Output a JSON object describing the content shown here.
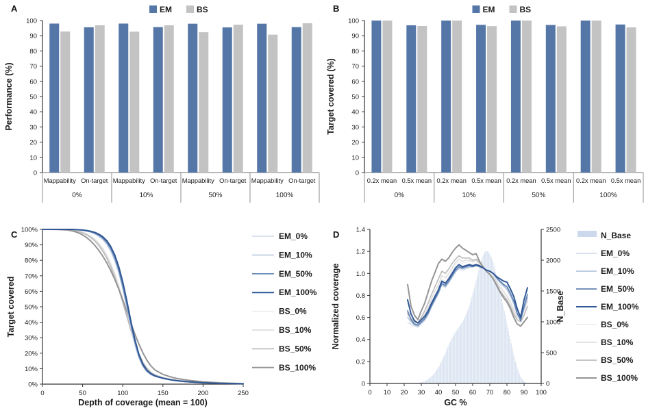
{
  "chart_data": [
    {
      "panel": "A",
      "type": "bar",
      "ylabel": "Performance (%)",
      "ylim": [
        0,
        100
      ],
      "ytick_step": 10,
      "legend": [
        "EM",
        "BS"
      ],
      "series_colors": {
        "EM": "#5577a7",
        "BS": "#c3c3c3"
      },
      "groups": [
        "0%",
        "10%",
        "50%",
        "100%"
      ],
      "subcategories": [
        "Mappability",
        "On-target"
      ],
      "series": [
        {
          "name": "EM",
          "values": [
            [
              98.0,
              95.6
            ],
            [
              98.0,
              95.7
            ],
            [
              97.9,
              95.5
            ],
            [
              97.9,
              95.7
            ]
          ]
        },
        {
          "name": "BS",
          "values": [
            [
              92.8,
              96.9
            ],
            [
              92.7,
              96.9
            ],
            [
              92.3,
              97.3
            ],
            [
              90.7,
              98.2
            ]
          ]
        }
      ]
    },
    {
      "panel": "B",
      "type": "bar",
      "ylabel": "Target covered (%)",
      "ylim": [
        0,
        100
      ],
      "ytick_step": 10,
      "legend": [
        "EM",
        "BS"
      ],
      "series_colors": {
        "EM": "#5577a7",
        "BS": "#c3c3c3"
      },
      "groups": [
        "0%",
        "10%",
        "50%",
        "100%"
      ],
      "subcategories": [
        "0.2x mean",
        "0.5x mean"
      ],
      "series": [
        {
          "name": "EM",
          "values": [
            [
              100,
              96.9
            ],
            [
              100,
              97.2
            ],
            [
              100,
              97.1
            ],
            [
              100,
              97.4
            ]
          ]
        },
        {
          "name": "BS",
          "values": [
            [
              100,
              96.4
            ],
            [
              100,
              96.3
            ],
            [
              100,
              96.2
            ],
            [
              100,
              95.5
            ]
          ]
        }
      ]
    },
    {
      "panel": "C",
      "type": "line",
      "xlabel": "Depth of coverage (mean = 100)",
      "ylabel": "Target covered",
      "xlim": [
        0,
        250
      ],
      "xtick_step": 50,
      "ylim": [
        0,
        100
      ],
      "ytick_step": 10,
      "ytick_suffix": "%",
      "x": [
        0,
        10,
        20,
        30,
        35,
        40,
        45,
        50,
        55,
        60,
        65,
        70,
        75,
        80,
        85,
        90,
        95,
        100,
        105,
        110,
        115,
        120,
        125,
        130,
        135,
        140,
        150,
        160,
        170,
        180,
        200,
        220,
        250
      ],
      "series": [
        {
          "name": "EM_0%",
          "color": "#cdd9e9",
          "width": 1.1,
          "y": [
            100,
            100,
            100,
            100,
            99.9,
            99.8,
            99.5,
            99.2,
            98.7,
            98,
            96.9,
            95.4,
            93.3,
            90.2,
            85.7,
            79.5,
            71.5,
            61,
            49,
            36.5,
            25.2,
            16.8,
            11.2,
            7.9,
            6,
            4.9,
            3.5,
            2.6,
            1.9,
            1.4,
            0.8,
            0.4,
            0.2
          ]
        },
        {
          "name": "EM_10%",
          "color": "#a8bdd9",
          "width": 1.3,
          "y": [
            100,
            100,
            100,
            100,
            99.9,
            99.8,
            99.6,
            99.3,
            98.9,
            98.2,
            97.2,
            95.8,
            93.8,
            90.8,
            86.5,
            80.5,
            72.5,
            62,
            50,
            37.5,
            26,
            17.3,
            11.5,
            8.1,
            6.2,
            5,
            3.6,
            2.6,
            1.9,
            1.4,
            0.8,
            0.5,
            0.2
          ]
        },
        {
          "name": "EM_50%",
          "color": "#6282b2",
          "width": 1.7,
          "y": [
            100,
            100,
            100,
            100,
            100,
            99.9,
            99.7,
            99.5,
            99.1,
            98.5,
            97.7,
            96.4,
            94.5,
            91.8,
            87.8,
            82,
            74,
            64,
            52,
            39.5,
            27.8,
            18.5,
            12.3,
            8.6,
            6.5,
            5.2,
            3.7,
            2.7,
            2,
            1.5,
            0.9,
            0.5,
            0.2
          ]
        },
        {
          "name": "EM_100%",
          "color": "#2f5795",
          "width": 2,
          "y": [
            100,
            100,
            100,
            100,
            100,
            99.9,
            99.8,
            99.6,
            99.3,
            98.8,
            98.1,
            97,
            95.3,
            92.8,
            89,
            83.5,
            76,
            66,
            54,
            41,
            29,
            19.5,
            13,
            9,
            6.8,
            5.4,
            3.8,
            2.8,
            2.1,
            1.6,
            0.9,
            0.5,
            0.2
          ]
        },
        {
          "name": "BS_0%",
          "color": "#ebebeb",
          "width": 1.1,
          "y": [
            100,
            100,
            100,
            99.9,
            99.8,
            99.5,
            99,
            98.3,
            97.3,
            95.9,
            94,
            91.5,
            88.2,
            84,
            78.7,
            72.2,
            64.5,
            55.8,
            46.5,
            37,
            28,
            20.5,
            14.7,
            10.7,
            8,
            6.3,
            4.4,
            3.2,
            2.4,
            1.8,
            1,
            0.6,
            0.2
          ]
        },
        {
          "name": "BS_10%",
          "color": "#d9d9d9",
          "width": 1.3,
          "y": [
            100,
            100,
            100,
            99.9,
            99.7,
            99.4,
            98.9,
            98.1,
            97,
            95.5,
            93.5,
            90.8,
            87.3,
            82.9,
            77.4,
            70.8,
            63,
            54.3,
            45.2,
            36,
            27.2,
            19.8,
            14.2,
            10.4,
            7.8,
            6.1,
            4.3,
            3.1,
            2.3,
            1.7,
            1,
            0.6,
            0.2
          ]
        },
        {
          "name": "BS_50%",
          "color": "#bdbdbd",
          "width": 1.7,
          "y": [
            100,
            100,
            99.9,
            99.8,
            99.6,
            99.2,
            98.6,
            97.7,
            96.5,
            94.8,
            92.6,
            89.7,
            86,
            81.4,
            75.8,
            69,
            61.3,
            52.7,
            43.8,
            35,
            26.5,
            19.3,
            13.9,
            10.2,
            7.6,
            6,
            4.2,
            3.1,
            2.3,
            1.7,
            1,
            0.6,
            0.2
          ]
        },
        {
          "name": "BS_100%",
          "color": "#949494",
          "width": 2,
          "y": [
            100,
            100,
            99.9,
            99.6,
            99.2,
            98.6,
            97.7,
            96.4,
            94.7,
            92.5,
            89.8,
            86.6,
            82.8,
            78.4,
            73.4,
            67.8,
            61.5,
            54.5,
            47,
            39.5,
            32.5,
            26,
            20.3,
            15.5,
            11.8,
            9.2,
            6.3,
            4.6,
            3.4,
            2.6,
            1.5,
            0.9,
            0.3
          ]
        }
      ]
    },
    {
      "panel": "D",
      "type": "line+histogram",
      "xlabel": "GC %",
      "ylabel": "Normalized coverage",
      "y2label": "N_Base",
      "xlim": [
        0,
        100
      ],
      "xtick_step": 10,
      "ylim": [
        0,
        1.4
      ],
      "ytick_step": 0.2,
      "y2lim": [
        0,
        2500
      ],
      "y2tick_step": 500,
      "histogram": {
        "name": "N_Base",
        "color": "#ccd9ec",
        "x_start": 28,
        "x_step": 1,
        "values": [
          8,
          12,
          18,
          26,
          36,
          50,
          68,
          90,
          115,
          145,
          180,
          220,
          265,
          315,
          370,
          430,
          495,
          560,
          625,
          685,
          740,
          790,
          835,
          875,
          915,
          955,
          1000,
          1050,
          1110,
          1180,
          1260,
          1350,
          1450,
          1560,
          1670,
          1780,
          1890,
          1990,
          2070,
          2130,
          2150,
          2140,
          2100,
          2040,
          1960,
          1860,
          1750,
          1630,
          1500,
          1370,
          1240,
          1110,
          980,
          850,
          720,
          590,
          470,
          360,
          260,
          180,
          115,
          70,
          40,
          20
        ]
      },
      "x": [
        22,
        24,
        26,
        28,
        30,
        32,
        34,
        36,
        38,
        40,
        42,
        44,
        46,
        48,
        50,
        52,
        54,
        56,
        58,
        60,
        62,
        64,
        66,
        68,
        70,
        72,
        74,
        76,
        78,
        80,
        82,
        84,
        86,
        88,
        90,
        92
      ],
      "series": [
        {
          "name": "EM_0%",
          "color": "#cdd9e9",
          "width": 1.1,
          "y": [
            0.55,
            0.54,
            0.52,
            0.51,
            0.54,
            0.57,
            0.62,
            0.69,
            0.75,
            0.81,
            0.89,
            0.87,
            0.91,
            0.96,
            1.01,
            1.04,
            1.03,
            1.04,
            1.05,
            1.06,
            1.07,
            1.06,
            1.05,
            1.03,
            1.02,
            1.0,
            0.95,
            0.91,
            0.88,
            0.85,
            0.79,
            0.72,
            0.62,
            0.59,
            0.67,
            0.76
          ]
        },
        {
          "name": "EM_10%",
          "color": "#a8bdd9",
          "width": 1.3,
          "y": [
            0.6,
            0.56,
            0.53,
            0.52,
            0.55,
            0.58,
            0.63,
            0.7,
            0.76,
            0.82,
            0.9,
            0.88,
            0.92,
            0.97,
            1.02,
            1.05,
            1.04,
            1.05,
            1.06,
            1.06,
            1.07,
            1.06,
            1.05,
            1.03,
            1.02,
            1.0,
            0.96,
            0.92,
            0.89,
            0.86,
            0.8,
            0.73,
            0.63,
            0.58,
            0.68,
            0.78
          ]
        },
        {
          "name": "EM_50%",
          "color": "#6282b2",
          "width": 1.7,
          "y": [
            0.66,
            0.58,
            0.54,
            0.53,
            0.56,
            0.59,
            0.64,
            0.71,
            0.77,
            0.83,
            0.91,
            0.89,
            0.93,
            0.98,
            1.03,
            1.06,
            1.05,
            1.06,
            1.07,
            1.06,
            1.07,
            1.06,
            1.05,
            1.03,
            1.02,
            1.0,
            0.96,
            0.93,
            0.9,
            0.88,
            0.82,
            0.75,
            0.64,
            0.57,
            0.7,
            0.81
          ]
        },
        {
          "name": "EM_100%",
          "color": "#2f5795",
          "width": 2,
          "y": [
            0.76,
            0.63,
            0.57,
            0.55,
            0.58,
            0.61,
            0.66,
            0.73,
            0.79,
            0.85,
            0.93,
            0.91,
            0.95,
            1.0,
            1.05,
            1.08,
            1.06,
            1.07,
            1.08,
            1.07,
            1.08,
            1.07,
            1.05,
            1.03,
            1.02,
            1.0,
            0.97,
            0.95,
            0.93,
            0.92,
            0.86,
            0.79,
            0.68,
            0.6,
            0.76,
            0.87
          ]
        },
        {
          "name": "BS_0%",
          "color": "#ebebeb",
          "width": 1.1,
          "y": [
            0.62,
            0.57,
            0.54,
            0.53,
            0.57,
            0.61,
            0.67,
            0.74,
            0.81,
            0.87,
            0.95,
            0.93,
            0.97,
            1.03,
            1.08,
            1.11,
            1.09,
            1.1,
            1.11,
            1.1,
            1.11,
            1.08,
            1.05,
            1.02,
            1.01,
            0.98,
            0.93,
            0.89,
            0.85,
            0.81,
            0.75,
            0.68,
            0.62,
            0.6,
            0.65,
            0.74
          ]
        },
        {
          "name": "BS_10%",
          "color": "#d9d9d9",
          "width": 1.3,
          "y": [
            0.63,
            0.58,
            0.55,
            0.54,
            0.58,
            0.63,
            0.69,
            0.77,
            0.84,
            0.9,
            0.98,
            0.96,
            1.0,
            1.05,
            1.1,
            1.13,
            1.11,
            1.12,
            1.12,
            1.11,
            1.12,
            1.09,
            1.06,
            1.02,
            1.0,
            0.97,
            0.92,
            0.87,
            0.83,
            0.79,
            0.73,
            0.66,
            0.6,
            0.62,
            0.67,
            0.75
          ]
        },
        {
          "name": "BS_50%",
          "color": "#bdbdbd",
          "width": 1.7,
          "y": [
            0.64,
            0.59,
            0.56,
            0.55,
            0.6,
            0.66,
            0.73,
            0.81,
            0.88,
            0.95,
            1.02,
            1.0,
            1.04,
            1.09,
            1.13,
            1.16,
            1.14,
            1.14,
            1.14,
            1.12,
            1.13,
            1.1,
            1.06,
            1.02,
            0.99,
            0.95,
            0.9,
            0.84,
            0.8,
            0.76,
            0.7,
            0.63,
            0.58,
            0.56,
            0.62,
            0.7
          ]
        },
        {
          "name": "BS_100%",
          "color": "#949494",
          "width": 2,
          "y": [
            0.9,
            0.7,
            0.62,
            0.58,
            0.66,
            0.73,
            0.83,
            0.93,
            1.01,
            1.09,
            1.13,
            1.11,
            1.14,
            1.19,
            1.23,
            1.26,
            1.23,
            1.21,
            1.19,
            1.17,
            1.18,
            1.11,
            1.06,
            1.02,
            0.99,
            0.95,
            0.89,
            0.83,
            0.78,
            0.74,
            0.68,
            0.6,
            0.54,
            0.52,
            0.56,
            0.6
          ]
        }
      ]
    }
  ]
}
